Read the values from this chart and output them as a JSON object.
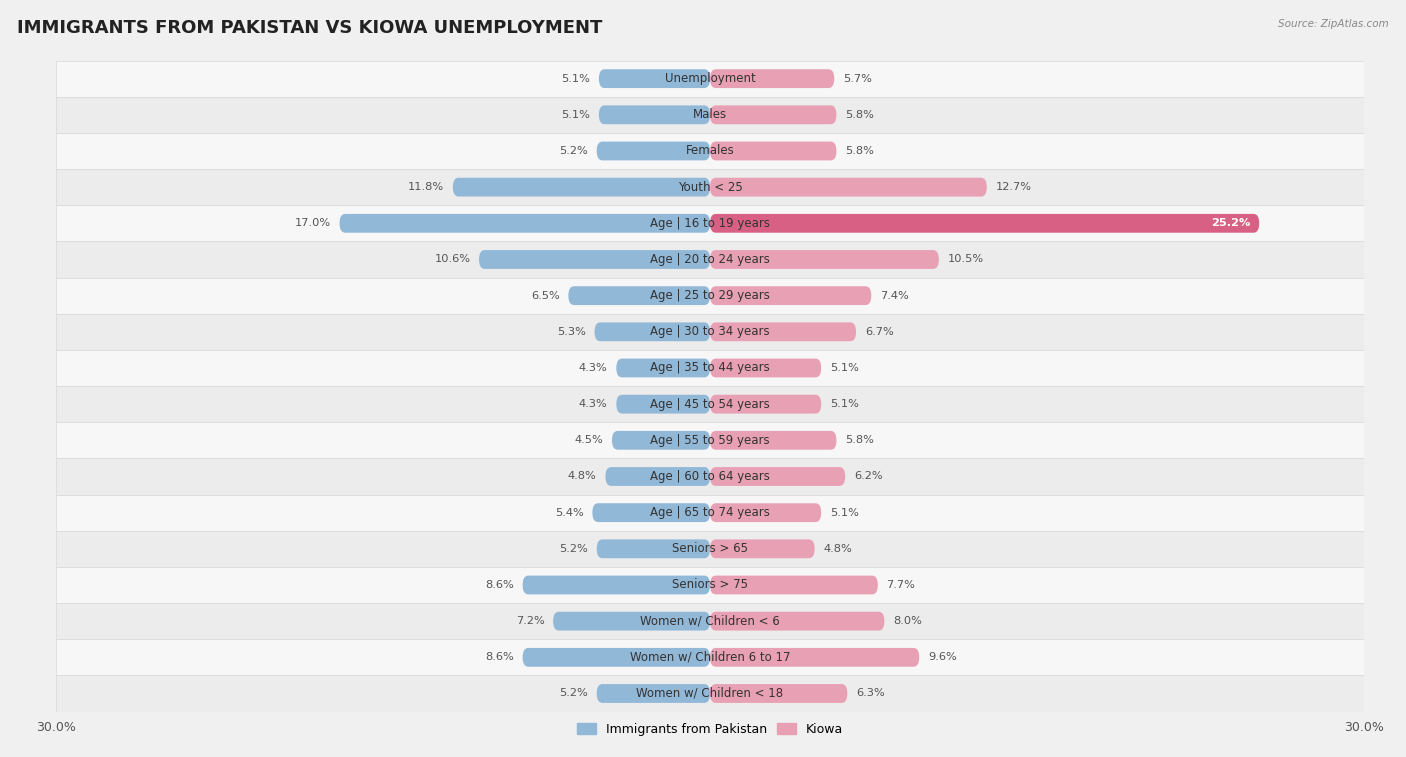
{
  "title": "IMMIGRANTS FROM PAKISTAN VS KIOWA UNEMPLOYMENT",
  "source": "Source: ZipAtlas.com",
  "categories": [
    "Unemployment",
    "Males",
    "Females",
    "Youth < 25",
    "Age | 16 to 19 years",
    "Age | 20 to 24 years",
    "Age | 25 to 29 years",
    "Age | 30 to 34 years",
    "Age | 35 to 44 years",
    "Age | 45 to 54 years",
    "Age | 55 to 59 years",
    "Age | 60 to 64 years",
    "Age | 65 to 74 years",
    "Seniors > 65",
    "Seniors > 75",
    "Women w/ Children < 6",
    "Women w/ Children 6 to 17",
    "Women w/ Children < 18"
  ],
  "pakistan_values": [
    5.1,
    5.1,
    5.2,
    11.8,
    17.0,
    10.6,
    6.5,
    5.3,
    4.3,
    4.3,
    4.5,
    4.8,
    5.4,
    5.2,
    8.6,
    7.2,
    8.6,
    5.2
  ],
  "kiowa_values": [
    5.7,
    5.8,
    5.8,
    12.7,
    25.2,
    10.5,
    7.4,
    6.7,
    5.1,
    5.1,
    5.8,
    6.2,
    5.1,
    4.8,
    7.7,
    8.0,
    9.6,
    6.3
  ],
  "pakistan_color": "#92b8d8",
  "kiowa_color": "#e8a0b4",
  "kiowa_highlight_color": "#d96085",
  "row_bg_light": "#f7f7f7",
  "row_bg_dark": "#ececec",
  "row_border": "#d8d8d8",
  "background_color": "#f0f0f0",
  "xlim": 30.0,
  "bar_height": 0.52,
  "title_fontsize": 13,
  "label_fontsize": 8.5,
  "value_fontsize": 8.2
}
